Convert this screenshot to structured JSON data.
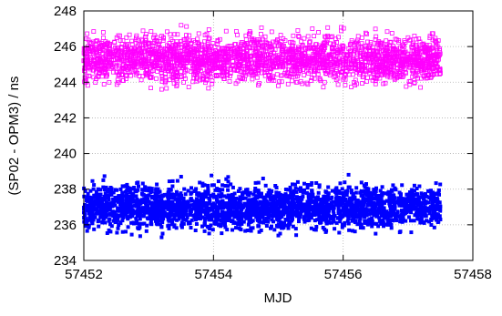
{
  "chart_data": {
    "type": "scatter",
    "title": "",
    "xlabel": "MJD",
    "ylabel": "(SP02 - OPM3) / ns",
    "xlim": [
      57452,
      57458
    ],
    "ylim": [
      234,
      248
    ],
    "xticks": [
      57452,
      57454,
      57456,
      57458
    ],
    "yticks": [
      234,
      236,
      238,
      240,
      242,
      244,
      246,
      248
    ],
    "grid": true,
    "legend": "none",
    "series": [
      {
        "marker": "open-square",
        "color": "#ff00ff",
        "x_range": [
          57452.0,
          57457.5
        ],
        "center": 245.3,
        "band": [
          243.3,
          247.4
        ],
        "samples": [
          [
            57452.0,
            245.2
          ],
          [
            57452.3,
            246.8
          ],
          [
            57452.6,
            244.1
          ],
          [
            57452.9,
            245.9
          ],
          [
            57453.2,
            243.6
          ],
          [
            57453.5,
            247.2
          ],
          [
            57453.8,
            245.0
          ],
          [
            57454.1,
            246.4
          ],
          [
            57454.4,
            244.3
          ],
          [
            57454.7,
            245.6
          ],
          [
            57455.0,
            243.8
          ],
          [
            57455.3,
            246.9
          ],
          [
            57455.6,
            245.1
          ],
          [
            57455.9,
            244.6
          ],
          [
            57456.2,
            246.2
          ],
          [
            57456.5,
            243.9
          ],
          [
            57456.8,
            245.4
          ],
          [
            57457.1,
            246.6
          ],
          [
            57457.5,
            244.5
          ]
        ]
      },
      {
        "marker": "filled-square",
        "color": "#0000ff",
        "x_range": [
          57452.0,
          57457.5
        ],
        "center": 237.0,
        "band": [
          235.0,
          238.9
        ],
        "samples": [
          [
            57452.0,
            236.9
          ],
          [
            57452.3,
            238.5
          ],
          [
            57452.6,
            235.6
          ],
          [
            57452.9,
            237.4
          ],
          [
            57453.2,
            235.3
          ],
          [
            57453.5,
            238.7
          ],
          [
            57453.8,
            236.7
          ],
          [
            57454.1,
            237.9
          ],
          [
            57454.4,
            235.8
          ],
          [
            57454.7,
            237.2
          ],
          [
            57455.0,
            235.4
          ],
          [
            57455.3,
            238.4
          ],
          [
            57455.6,
            236.8
          ],
          [
            57455.9,
            236.1
          ],
          [
            57456.2,
            237.8
          ],
          [
            57456.5,
            235.5
          ],
          [
            57456.8,
            237.0
          ],
          [
            57457.1,
            238.2
          ],
          [
            57457.5,
            236.3
          ]
        ]
      }
    ]
  }
}
